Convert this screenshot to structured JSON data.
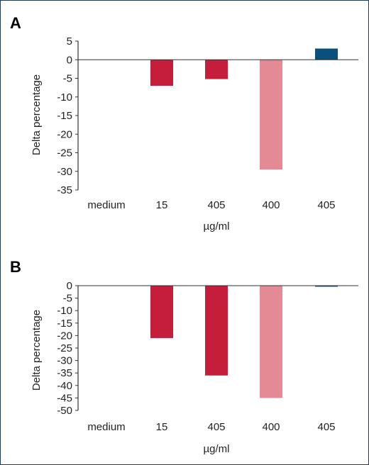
{
  "colors": {
    "dark_red": "#c41e3a",
    "pink": "#e38a95",
    "navy": "#0b4f7c"
  },
  "chart_data": [
    {
      "panel": "A",
      "type": "bar",
      "ylabel": "Delta percentage",
      "xlabel": "µg/ml",
      "categories": [
        "medium",
        "15",
        "405",
        "400",
        "405"
      ],
      "values": [
        0,
        -7,
        -5.2,
        -29.5,
        3
      ],
      "bar_colors": [
        "none",
        "#c41e3a",
        "#c41e3a",
        "#e38a95",
        "#0b4f7c"
      ],
      "ylim": [
        -35,
        5
      ],
      "yticks": [
        5,
        0,
        -5,
        -10,
        -15,
        -20,
        -25,
        -30,
        -35
      ],
      "grid": false
    },
    {
      "panel": "B",
      "type": "bar",
      "ylabel": "Delta percentage",
      "xlabel": "µg/ml",
      "categories": [
        "medium",
        "15",
        "405",
        "400",
        "405"
      ],
      "values": [
        0,
        -21,
        -36,
        -45,
        -0.3
      ],
      "bar_colors": [
        "none",
        "#c41e3a",
        "#c41e3a",
        "#e38a95",
        "#0b4f7c"
      ],
      "ylim": [
        -50,
        0
      ],
      "yticks": [
        0,
        -5,
        -10,
        -15,
        -20,
        -25,
        -30,
        -35,
        -40,
        -45,
        -50
      ],
      "grid": false
    }
  ]
}
